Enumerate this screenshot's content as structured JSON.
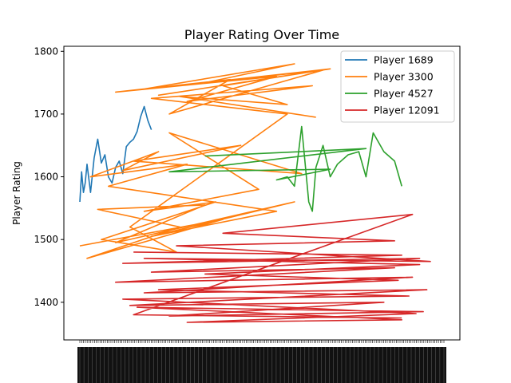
{
  "chart_data": {
    "type": "line",
    "title": "Player Rating Over Time",
    "xlabel": "",
    "ylabel": "Player Rating",
    "ylim": [
      1340,
      1808
    ],
    "yticks": [
      1400,
      1500,
      1600,
      1700,
      1800
    ],
    "grid": false,
    "legend_position": "top-right",
    "x_tick_labels_legible": false,
    "series": [
      {
        "name": "Player 1689",
        "color": "#1f77b4",
        "x": [
          0.0,
          0.005,
          0.01,
          0.015,
          0.02,
          0.03,
          0.04,
          0.05,
          0.06,
          0.07,
          0.08,
          0.09,
          0.1,
          0.11,
          0.12,
          0.13,
          0.14,
          0.15,
          0.16,
          0.17,
          0.18,
          0.19,
          0.2
        ],
        "values": [
          1560,
          1608,
          1575,
          1590,
          1620,
          1575,
          1630,
          1660,
          1622,
          1635,
          1600,
          1590,
          1615,
          1625,
          1605,
          1648,
          1655,
          1660,
          1672,
          1696,
          1712,
          1690,
          1675
        ]
      },
      {
        "name": "Player 3300",
        "color": "#ff7f0e",
        "x": [
          0.0,
          0.4,
          0.02,
          0.28,
          0.05,
          0.35,
          0.1,
          0.6,
          0.2,
          0.55,
          0.08,
          0.3,
          0.03,
          0.22,
          0.12,
          0.45,
          0.15,
          0.62,
          0.25,
          0.5,
          0.18,
          0.38,
          0.06,
          0.27,
          0.14,
          0.58,
          0.2,
          0.65,
          0.3,
          0.55,
          0.1,
          0.42,
          0.25,
          0.68,
          0.18,
          0.6,
          0.35,
          0.7,
          0.22,
          0.62,
          0.4,
          0.58,
          0.28,
          0.66
        ],
        "values": [
          1490,
          1532,
          1470,
          1520,
          1548,
          1555,
          1495,
          1560,
          1505,
          1545,
          1585,
          1620,
          1600,
          1640,
          1610,
          1650,
          1625,
          1605,
          1670,
          1580,
          1545,
          1560,
          1500,
          1480,
          1520,
          1700,
          1725,
          1745,
          1720,
          1760,
          1735,
          1755,
          1700,
          1770,
          1740,
          1780,
          1750,
          1772,
          1730,
          1765,
          1745,
          1715,
          1728,
          1695
        ]
      },
      {
        "name": "Player 4527",
        "color": "#2ca02c",
        "x": [
          0.35,
          0.8,
          0.25,
          0.7,
          0.55,
          0.58,
          0.6,
          0.62,
          0.64,
          0.65,
          0.66,
          0.68,
          0.7,
          0.72,
          0.75,
          0.78,
          0.8,
          0.82,
          0.85,
          0.88,
          0.9
        ],
        "values": [
          1633,
          1645,
          1608,
          1612,
          1595,
          1600,
          1585,
          1680,
          1560,
          1545,
          1615,
          1650,
          1600,
          1620,
          1635,
          1640,
          1600,
          1670,
          1640,
          1625,
          1585
        ]
      },
      {
        "name": "Player 12091",
        "color": "#d62728",
        "x": [
          0.15,
          0.9,
          0.12,
          0.95,
          0.2,
          0.88,
          0.1,
          0.93,
          0.18,
          0.97,
          0.14,
          0.85,
          0.25,
          0.96,
          0.16,
          0.9,
          0.3,
          0.94,
          0.12,
          0.92,
          0.22,
          0.89,
          0.35,
          0.95,
          0.18,
          0.98,
          0.27,
          0.88,
          0.4,
          0.93,
          0.15,
          0.9
        ],
        "values": [
          1480,
          1475,
          1462,
          1470,
          1448,
          1455,
          1432,
          1440,
          1415,
          1420,
          1395,
          1400,
          1378,
          1385,
          1392,
          1372,
          1368,
          1382,
          1405,
          1410,
          1420,
          1435,
          1445,
          1460,
          1470,
          1465,
          1490,
          1498,
          1510,
          1540,
          1380,
          1375
        ]
      }
    ]
  }
}
